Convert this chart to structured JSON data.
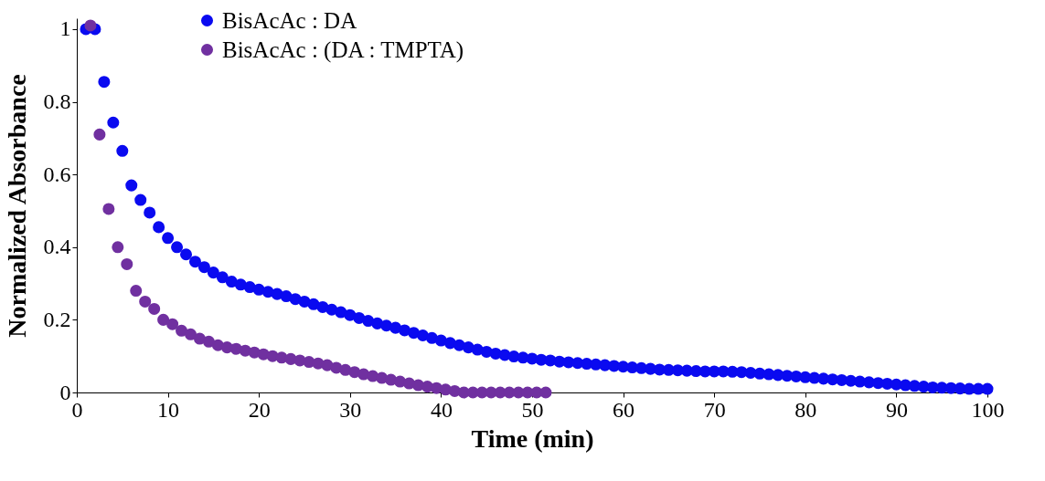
{
  "chart_data": {
    "type": "scatter",
    "xlabel": "Time (min)",
    "ylabel": "Normalized Absorbance",
    "xlim": [
      0,
      100
    ],
    "xticks": [
      0,
      10,
      20,
      30,
      40,
      50,
      60,
      70,
      80,
      90,
      100
    ],
    "ylim": [
      0,
      1.03
    ],
    "yticks": [
      0,
      0.2,
      0.4,
      0.6,
      0.8,
      1
    ],
    "grid": false,
    "legend": "top",
    "marker": "circle",
    "series": [
      {
        "name": "BisAcAc : DA",
        "color": "#0a0af0",
        "x": [
          1,
          2,
          3,
          4,
          5,
          6,
          7,
          8,
          9,
          10,
          11,
          12,
          13,
          14,
          15,
          16,
          17,
          18,
          19,
          20,
          21,
          22,
          23,
          24,
          25,
          26,
          27,
          28,
          29,
          30,
          31,
          32,
          33,
          34,
          35,
          36,
          37,
          38,
          39,
          40,
          41,
          42,
          43,
          44,
          45,
          46,
          47,
          48,
          49,
          50,
          51,
          52,
          53,
          54,
          55,
          56,
          57,
          58,
          59,
          60,
          61,
          62,
          63,
          64,
          65,
          66,
          67,
          68,
          69,
          70,
          71,
          72,
          73,
          74,
          75,
          76,
          77,
          78,
          79,
          80,
          81,
          82,
          83,
          84,
          85,
          86,
          87,
          88,
          89,
          90,
          91,
          92,
          93,
          94,
          95,
          96,
          97,
          98,
          99,
          100
        ],
        "values": [
          1.0,
          1.0,
          0.855,
          0.743,
          0.665,
          0.57,
          0.53,
          0.495,
          0.455,
          0.425,
          0.4,
          0.38,
          0.36,
          0.345,
          0.33,
          0.317,
          0.305,
          0.297,
          0.29,
          0.283,
          0.277,
          0.271,
          0.265,
          0.257,
          0.25,
          0.243,
          0.235,
          0.228,
          0.221,
          0.213,
          0.205,
          0.197,
          0.19,
          0.184,
          0.178,
          0.171,
          0.164,
          0.157,
          0.15,
          0.143,
          0.136,
          0.13,
          0.124,
          0.118,
          0.112,
          0.107,
          0.103,
          0.099,
          0.096,
          0.093,
          0.09,
          0.088,
          0.085,
          0.083,
          0.081,
          0.079,
          0.077,
          0.075,
          0.073,
          0.071,
          0.069,
          0.067,
          0.065,
          0.063,
          0.062,
          0.061,
          0.06,
          0.059,
          0.058,
          0.058,
          0.058,
          0.057,
          0.056,
          0.054,
          0.052,
          0.05,
          0.048,
          0.046,
          0.044,
          0.042,
          0.04,
          0.038,
          0.036,
          0.034,
          0.032,
          0.03,
          0.028,
          0.026,
          0.024,
          0.022,
          0.02,
          0.018,
          0.016,
          0.014,
          0.013,
          0.012,
          0.011,
          0.01,
          0.01,
          0.01
        ]
      },
      {
        "name": "BisAcAc : (DA : TMPTA)",
        "color": "#7030a0",
        "x": [
          1.5,
          2.5,
          3.5,
          4.5,
          5.5,
          6.5,
          7.5,
          8.5,
          9.5,
          10.5,
          11.5,
          12.5,
          13.5,
          14.5,
          15.5,
          16.5,
          17.5,
          18.5,
          19.5,
          20.5,
          21.5,
          22.5,
          23.5,
          24.5,
          25.5,
          26.5,
          27.5,
          28.5,
          29.5,
          30.5,
          31.5,
          32.5,
          33.5,
          34.5,
          35.5,
          36.5,
          37.5,
          38.5,
          39.5,
          40.5,
          41.5,
          42.5,
          43.5,
          44.5,
          45.5,
          46.5,
          47.5,
          48.5,
          49.5,
          50.5,
          51.5
        ],
        "values": [
          1.01,
          0.71,
          0.505,
          0.4,
          0.353,
          0.28,
          0.25,
          0.23,
          0.2,
          0.188,
          0.17,
          0.16,
          0.148,
          0.14,
          0.13,
          0.124,
          0.12,
          0.115,
          0.11,
          0.105,
          0.1,
          0.096,
          0.092,
          0.088,
          0.084,
          0.08,
          0.075,
          0.068,
          0.062,
          0.056,
          0.05,
          0.045,
          0.04,
          0.035,
          0.03,
          0.025,
          0.02,
          0.016,
          0.012,
          0.008,
          0.004,
          0,
          0,
          0,
          0,
          0,
          0,
          0,
          0,
          0,
          0
        ]
      }
    ]
  }
}
